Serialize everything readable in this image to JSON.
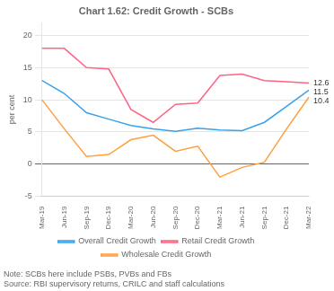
{
  "chart_data": {
    "type": "line",
    "title": "Chart 1.62: Credit Growth - SCBs",
    "categories": [
      "Mar-19",
      "Jun-19",
      "Sep-19",
      "Dec-19",
      "Mar-20",
      "Jun-20",
      "Sep-20",
      "Dec-20",
      "Mar-21",
      "Jun-21",
      "Sep-21",
      "Dec-21",
      "Mar-22"
    ],
    "series": [
      {
        "name": "Overall Credit Growth",
        "values": [
          13.0,
          11.0,
          8.0,
          7.0,
          6.0,
          5.5,
          5.1,
          5.6,
          5.3,
          5.2,
          6.5,
          9.0,
          11.5
        ]
      },
      {
        "name": "Retail Credit Growth",
        "values": [
          18.0,
          18.0,
          15.0,
          14.8,
          8.5,
          6.5,
          9.3,
          9.5,
          13.8,
          14.0,
          13.0,
          12.8,
          12.6
        ]
      },
      {
        "name": "Wholesale Credit Growth",
        "values": [
          10.0,
          5.5,
          1.2,
          1.5,
          3.8,
          4.5,
          2.0,
          2.8,
          -2.0,
          -0.5,
          0.3,
          5.5,
          10.4
        ]
      }
    ],
    "y_label": "per cent",
    "ylim": [
      -5,
      22
    ],
    "yticks": [
      -5,
      0,
      5,
      10,
      15,
      20
    ],
    "grid": true,
    "legend": "bottom",
    "annotations": [
      {
        "text": "12.6",
        "x": "Mar-22",
        "y": 12.6
      },
      {
        "text": "11.5",
        "x": "Mar-22",
        "y": 11.5
      },
      {
        "text": "10.4",
        "x": "Mar-22",
        "y": 10.4
      }
    ],
    "notes": [
      "Note: SCBs here include PSBs, PVBs and FBs",
      "Source: RBI supervisory returns, CRILC and staff calculations"
    ]
  }
}
